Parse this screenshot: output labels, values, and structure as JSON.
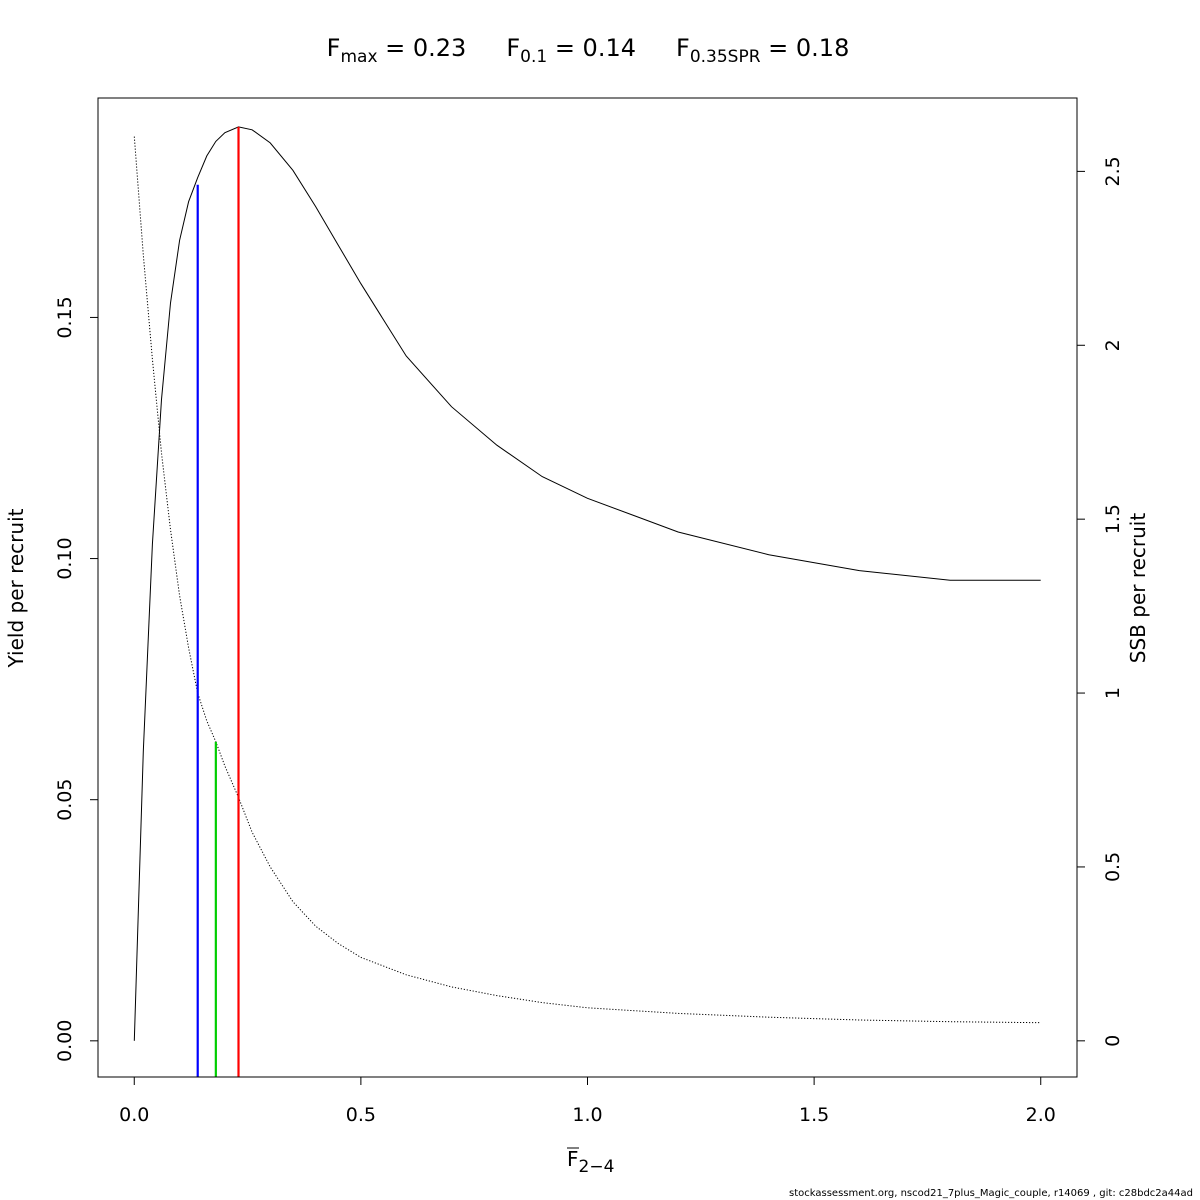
{
  "chart_data": {
    "type": "line",
    "title_parts": [
      {
        "main": "F",
        "sub": "max",
        "rest": " = 0.23"
      },
      {
        "main": "F",
        "sub": "0.1",
        "rest": " = 0.14"
      },
      {
        "main": "F",
        "sub": "0.35SPR",
        "rest": " = 0.18"
      }
    ],
    "xlabel": {
      "main": "F",
      "sub": "2−4"
    },
    "ylabel_left": "Yield per recruit",
    "ylabel_right": "SSB per recruit",
    "x_ticks": [
      "0.0",
      "0.5",
      "1.0",
      "1.5",
      "2.0"
    ],
    "y_left_ticks": [
      "0.00",
      "0.05",
      "0.10",
      "0.15"
    ],
    "y_right_ticks": [
      "0",
      "0.5",
      "1",
      "1.5",
      "2",
      "2.5"
    ],
    "xlim": [
      -0.08,
      2.08
    ],
    "ylim_left": [
      -0.0075,
      0.1955
    ],
    "ylim_right": [
      -0.104,
      2.711
    ],
    "grid": false,
    "series": [
      {
        "axis": "left",
        "style": "solid",
        "color": "#000000",
        "x": [
          0.0,
          0.02,
          0.04,
          0.06,
          0.08,
          0.1,
          0.12,
          0.14,
          0.16,
          0.18,
          0.2,
          0.23,
          0.26,
          0.3,
          0.35,
          0.4,
          0.45,
          0.5,
          0.6,
          0.7,
          0.8,
          0.9,
          1.0,
          1.2,
          1.4,
          1.6,
          1.8,
          2.0
        ],
        "values": [
          0.0,
          0.06,
          0.103,
          0.133,
          0.153,
          0.166,
          0.174,
          0.179,
          0.1835,
          0.1865,
          0.1883,
          0.1895,
          0.1889,
          0.1862,
          0.1805,
          0.173,
          0.165,
          0.157,
          0.142,
          0.1315,
          0.1235,
          0.117,
          0.1125,
          0.1055,
          0.1008,
          0.0975,
          0.0955,
          0.0955
        ]
      },
      {
        "axis": "right",
        "style": "dotted",
        "color": "#000000",
        "x": [
          0.0,
          0.02,
          0.04,
          0.06,
          0.08,
          0.1,
          0.12,
          0.14,
          0.16,
          0.18,
          0.2,
          0.23,
          0.26,
          0.3,
          0.35,
          0.4,
          0.45,
          0.5,
          0.6,
          0.7,
          0.8,
          0.9,
          1.0,
          1.2,
          1.4,
          1.6,
          1.8,
          2.0
        ],
        "values": [
          2.6,
          2.26,
          1.96,
          1.69,
          1.47,
          1.28,
          1.13,
          1.0,
          0.92,
          0.86,
          0.79,
          0.7,
          0.6,
          0.5,
          0.4,
          0.33,
          0.28,
          0.24,
          0.19,
          0.155,
          0.13,
          0.11,
          0.095,
          0.079,
          0.068,
          0.06,
          0.055,
          0.052
        ]
      }
    ],
    "reference_lines": [
      {
        "label": "F0.1",
        "x": 0.14,
        "y_left_top": 0.1775,
        "color": "#0000ff"
      },
      {
        "label": "F0.35SPR",
        "x": 0.18,
        "y_left_top": 0.062,
        "color": "#00cd00"
      },
      {
        "label": "Fmax",
        "x": 0.23,
        "y_left_top": 0.1895,
        "color": "#ff0000"
      }
    ]
  },
  "footer_text": "stockassessment.org, nscod21_7plus_Magic_couple, r14069 , git: c28bdc2a44ad"
}
